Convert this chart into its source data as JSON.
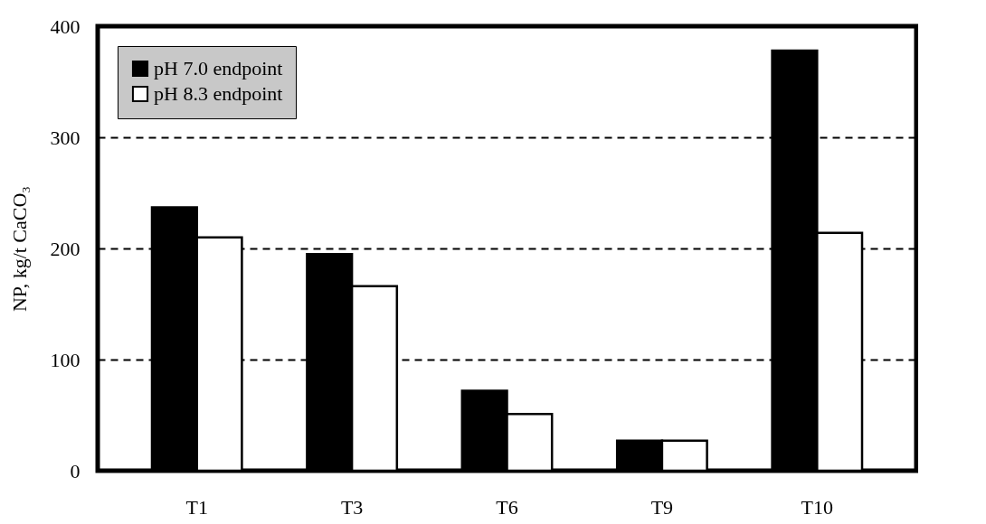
{
  "chart_data": {
    "type": "bar",
    "ylabel": "NP, kg/t CaCO₃",
    "categories": [
      "T1",
      "T3",
      "T6",
      "T9",
      "T10"
    ],
    "series": [
      {
        "name": "pH 7.0 endpoint",
        "color": "#000000",
        "values": [
          237,
          195,
          72,
          27,
          378
        ]
      },
      {
        "name": "pH 8.3 endpoint",
        "color": "#ffffff",
        "values": [
          210,
          166,
          51,
          27,
          214
        ]
      }
    ],
    "ylim": [
      0,
      400
    ],
    "yticks": [
      0,
      100,
      200,
      300,
      400
    ],
    "grid": "y",
    "legend": "top left"
  }
}
